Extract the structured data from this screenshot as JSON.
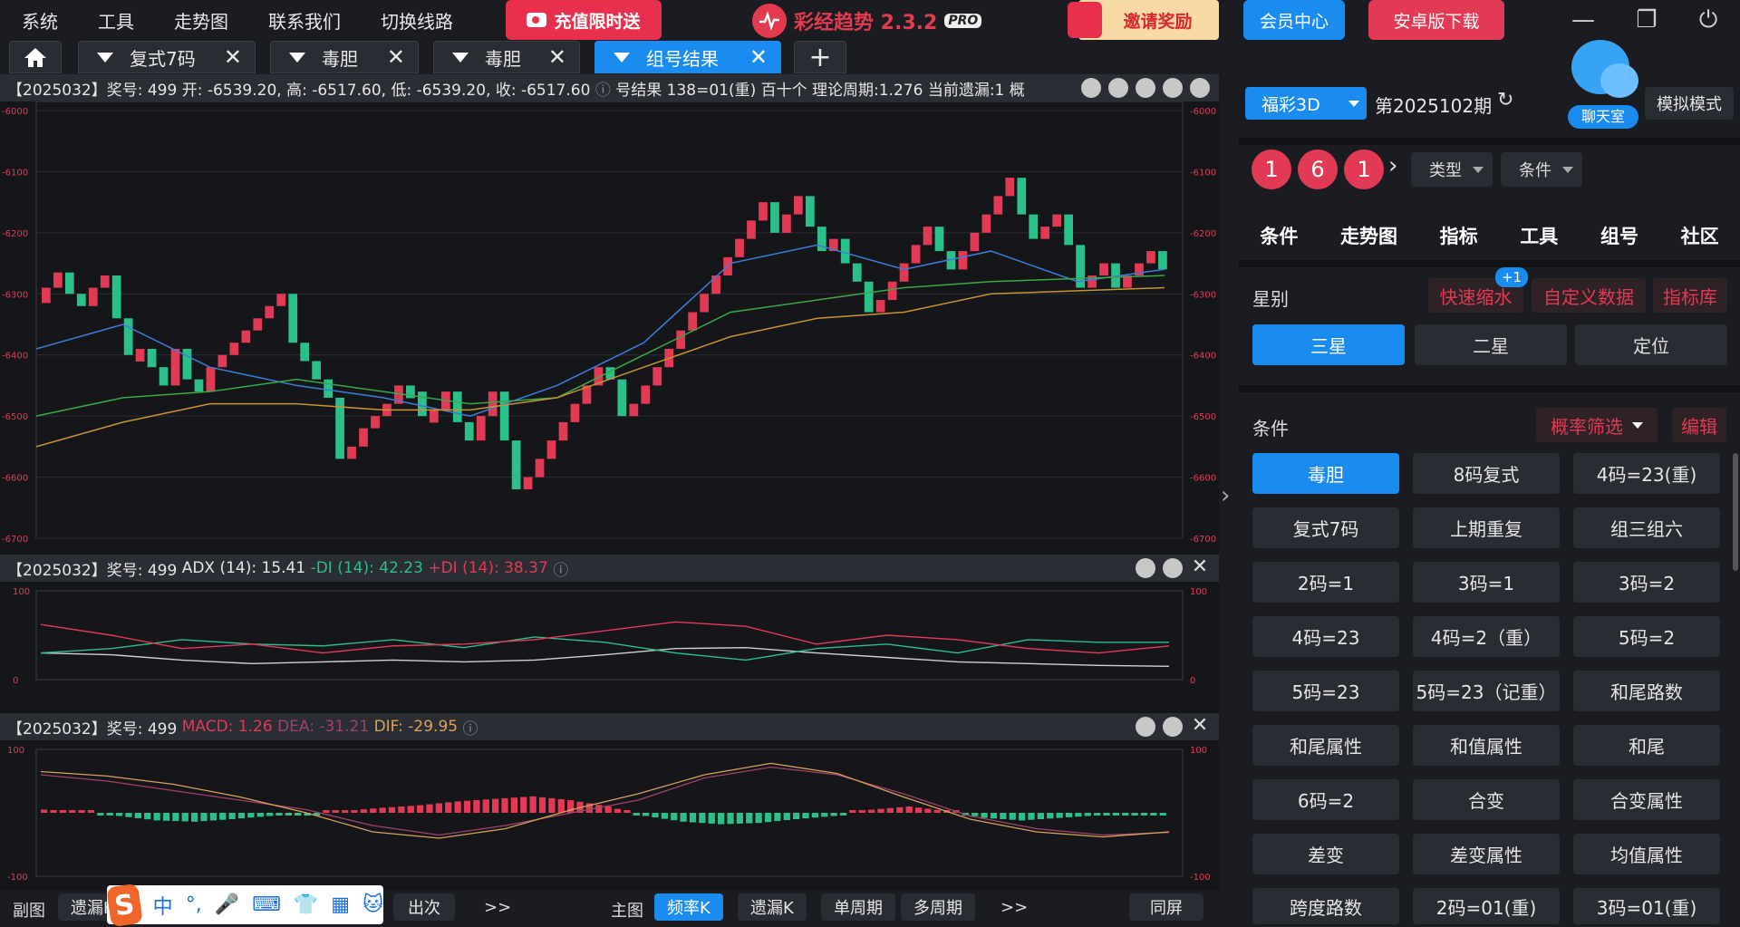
{
  "menu": [
    "系统",
    "工具",
    "走势图",
    "联系我们",
    "切换线路"
  ],
  "promo": "充值限时送",
  "brand": {
    "name": "彩经趋势 2.3.2",
    "badge": "PRO"
  },
  "invite": "邀请奖励",
  "member": "会员中心",
  "android": "安卓版下载",
  "window_controls": [
    "minimize-icon",
    "restore-icon",
    "power-icon"
  ],
  "tabs": [
    {
      "label": "复式7码",
      "active": false
    },
    {
      "label": "毒胆",
      "active": false
    },
    {
      "label": "毒胆",
      "active": false
    },
    {
      "label": "组号结果",
      "active": true
    }
  ],
  "add_tab": "+",
  "main_chart": {
    "info": {
      "period": "【2025032】奖号: 499",
      "open": "开: -6539.20,",
      "high": "高: -6517.60,",
      "low": "低: -6539.20,",
      "close": "收: -6517.60",
      "extra": "号结果  138=01(重)   百十个   理论周期:1.276   当前遗漏:1   概"
    },
    "y_ticks": [
      "-6000",
      "-6100",
      "-6200",
      "-6300",
      "-6400",
      "-6500",
      "-6600",
      "-6700"
    ]
  },
  "adx_panel": {
    "period": "【2025032】奖号: 499",
    "adx": "ADX (14): 15.41",
    "minus_di": "-DI (14): 42.23",
    "plus_di": "+DI (14): 38.37",
    "y_ticks": [
      "100",
      "0"
    ]
  },
  "macd_panel": {
    "period": "【2025032】奖号: 499",
    "macd": "MACD: 1.26",
    "dea": "DEA: -31.21",
    "dif": "DIF: -29.95",
    "y_ticks": [
      "100",
      "-100"
    ]
  },
  "chart_data": [
    {
      "type": "candlestick",
      "title": "",
      "ylim": [
        -6700,
        -6000
      ],
      "series": [
        {
          "name": "K",
          "values": [
            -6290,
            -6265,
            -6300,
            -6320,
            -6290,
            -6270,
            -6340,
            -6400,
            -6390,
            -6420,
            -6450,
            -6390,
            -6440,
            -6460,
            -6420,
            -6400,
            -6380,
            -6360,
            -6340,
            -6320,
            -6300,
            -6380,
            -6410,
            -6440,
            -6470,
            -6570,
            -6550,
            -6520,
            -6500,
            -6480,
            -6450,
            -6460,
            -6500,
            -6490,
            -6460,
            -6510,
            -6540,
            -6500,
            -6460,
            -6540,
            -6620,
            -6600,
            -6570,
            -6540,
            -6510,
            -6480,
            -6450,
            -6420,
            -6440,
            -6500,
            -6480,
            -6450,
            -6420,
            -6390,
            -6360,
            -6330,
            -6300,
            -6270,
            -6240,
            -6210,
            -6180,
            -6150,
            -6200,
            -6170,
            -6140,
            -6190,
            -6230,
            -6210,
            -6250,
            -6280,
            -6330,
            -6310,
            -6280,
            -6250,
            -6220,
            -6190,
            -6230,
            -6260,
            -6230,
            -6200,
            -6170,
            -6140,
            -6110,
            -6170,
            -6210,
            -6190,
            -6170,
            -6220,
            -6290,
            -6270,
            -6250,
            -6290,
            -6270,
            -6250,
            -6230,
            -6260
          ]
        },
        {
          "name": "MA1",
          "values": [
            -6390,
            -6350,
            -6420,
            -6450,
            -6470,
            -6500,
            -6450,
            -6380,
            -6250,
            -6220,
            -6260,
            -6230,
            -6280,
            -6260
          ]
        },
        {
          "name": "MA2",
          "values": [
            -6500,
            -6470,
            -6460,
            -6440,
            -6460,
            -6480,
            -6470,
            -6400,
            -6330,
            -6310,
            -6290,
            -6280,
            -6275,
            -6270
          ]
        },
        {
          "name": "MA3",
          "values": [
            -6550,
            -6510,
            -6480,
            -6480,
            -6490,
            -6490,
            -6470,
            -6420,
            -6370,
            -6340,
            -6330,
            -6300,
            -6295,
            -6290
          ]
        }
      ]
    },
    {
      "type": "line",
      "title": "",
      "ylim": [
        0,
        100
      ],
      "series": [
        {
          "name": "ADX (14)",
          "values": [
            30,
            28,
            22,
            18,
            20,
            22,
            20,
            22,
            28,
            35,
            36,
            30,
            25,
            20,
            18,
            16,
            15
          ]
        },
        {
          "name": "-DI (14)",
          "values": [
            30,
            35,
            45,
            40,
            38,
            45,
            36,
            48,
            42,
            30,
            22,
            35,
            40,
            30,
            45,
            42,
            42
          ]
        },
        {
          "name": "+DI (14)",
          "values": [
            62,
            50,
            35,
            40,
            30,
            38,
            40,
            45,
            55,
            65,
            60,
            40,
            50,
            45,
            35,
            30,
            38
          ]
        }
      ]
    },
    {
      "type": "bar",
      "title": "",
      "ylim": [
        -100,
        100
      ],
      "series": [
        {
          "name": "MACD",
          "values": [
            5,
            2,
            -5,
            -12,
            -14,
            -10,
            -5,
            -2,
            3,
            8,
            12,
            18,
            22,
            26,
            20,
            10,
            -5,
            -14,
            -18,
            -16,
            -10,
            -5,
            5,
            10,
            3,
            -8,
            -12,
            -8,
            -4,
            -2
          ]
        },
        {
          "name": "DEA",
          "values": [
            60,
            50,
            35,
            20,
            5,
            -20,
            -35,
            -20,
            0,
            20,
            55,
            72,
            60,
            30,
            -5,
            -25,
            -35,
            -31
          ]
        },
        {
          "name": "DIF",
          "values": [
            65,
            58,
            45,
            25,
            0,
            -30,
            -40,
            -25,
            5,
            30,
            60,
            78,
            62,
            25,
            -10,
            -30,
            -38,
            -30
          ]
        }
      ]
    }
  ],
  "bottom": {
    "sub_label": "副图",
    "sub_btn": "遗漏K",
    "times_btn": "出次",
    "more1": ">>",
    "main_label": "主图",
    "main_btns": [
      "频率K",
      "遗漏K",
      "单周期",
      "多周期"
    ],
    "more2": ">>",
    "sync": "同屏"
  },
  "ime": {
    "items": [
      "中",
      "°,",
      "🎤",
      "⌨",
      "👕",
      "▦",
      "🐱"
    ]
  },
  "right": {
    "lottery": "福彩3D",
    "issue": "第2025102期",
    "mode": "模拟模式",
    "chat": "聊天室",
    "balls": [
      "1",
      "6",
      "1"
    ],
    "type_dd": "类型",
    "cond_dd": "条件",
    "nav": [
      "条件",
      "走势图",
      "指标",
      "工具",
      "组号",
      "社区"
    ],
    "star_label": "星别",
    "quick": "快速缩水",
    "quick_badge": "+1",
    "custom": "自定义数据",
    "lib": "指标库",
    "stars": [
      "三星",
      "二星",
      "定位"
    ],
    "cond_label": "条件",
    "filter": "概率筛选",
    "edit": "编辑",
    "conditions": [
      "毒胆",
      "8码复式",
      "4码=23(重)",
      "复式7码",
      "上期重复",
      "组三组六",
      "2码=1",
      "3码=1",
      "3码=2",
      "4码=23",
      "4码=2（重）",
      "5码=2",
      "5码=23",
      "5码=23（记重）",
      "和尾路数",
      "和尾属性",
      "和值属性",
      "和尾",
      "6码=2",
      "合变",
      "合变属性",
      "差变",
      "差变属性",
      "均值属性",
      "跨度路数",
      "2码=01(重)",
      "3码=01(重)"
    ]
  },
  "colors": {
    "accent": "#1a8cf0",
    "red": "#e23a55",
    "green": "#2bbf8a",
    "bg": "#1b1c21"
  }
}
